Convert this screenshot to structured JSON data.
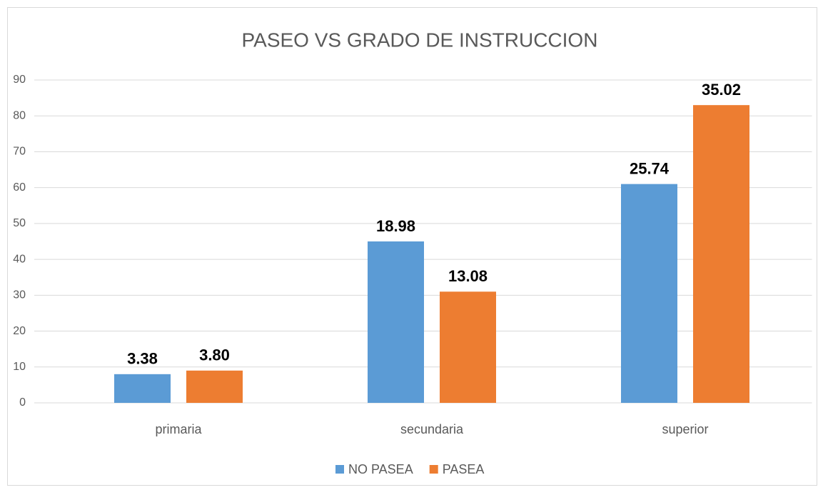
{
  "chart_data": {
    "type": "bar",
    "title": "PASEO VS GRADO DE INSTRUCCION",
    "categories": [
      "primaria",
      "secundaria",
      "superior"
    ],
    "series": [
      {
        "name": "NO PASEA",
        "color": "#5b9bd5",
        "values": [
          8,
          45,
          61
        ],
        "data_labels": [
          "3.38",
          "18.98",
          "25.74"
        ]
      },
      {
        "name": "PASEA",
        "color": "#ed7d31",
        "values": [
          9,
          31,
          83
        ],
        "data_labels": [
          "3.80",
          "13.08",
          "35.02"
        ]
      }
    ],
    "ylim": [
      0,
      90
    ],
    "yticks": [
      0,
      10,
      20,
      30,
      40,
      50,
      60,
      70,
      80,
      90
    ],
    "grid": true,
    "legend": "bottom"
  }
}
